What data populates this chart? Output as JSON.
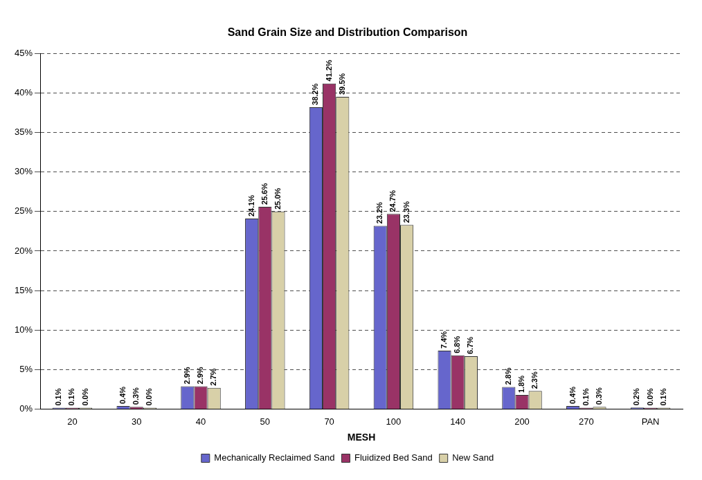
{
  "chart_data": {
    "type": "bar",
    "title": "Sand Grain Size and Distribution Comparison",
    "xlabel": "MESH",
    "categories": [
      "20",
      "30",
      "40",
      "50",
      "70",
      "100",
      "140",
      "200",
      "270",
      "PAN"
    ],
    "series": [
      {
        "name": "Mechanically Reclaimed Sand",
        "color": "#6666cc",
        "values": [
          0.1,
          0.4,
          2.9,
          24.1,
          38.2,
          23.2,
          7.4,
          2.8,
          0.4,
          0.2
        ],
        "value_labels": [
          "0.1%",
          "0.4%",
          "2.9%",
          "24.1%",
          "38.2%",
          "23.2%",
          "7.4%",
          "2.8%",
          "0.4%",
          "0.2%"
        ]
      },
      {
        "name": "Fluidized Bed Sand",
        "color": "#993366",
        "values": [
          0.1,
          0.3,
          2.9,
          25.6,
          41.2,
          24.7,
          6.8,
          1.8,
          0.1,
          0.0
        ],
        "value_labels": [
          "0.1%",
          "0.3%",
          "2.9%",
          "25.6%",
          "41.2%",
          "24.7%",
          "6.8%",
          "1.8%",
          "0.1%",
          "0.0%"
        ]
      },
      {
        "name": "New Sand",
        "color": "#d8d0a8",
        "values": [
          0.0,
          0.0,
          2.7,
          25.0,
          39.5,
          23.3,
          6.7,
          2.3,
          0.3,
          0.1
        ],
        "value_labels": [
          "0.0%",
          "0.0%",
          "2.7%",
          "25.0%",
          "39.5%",
          "23.3%",
          "6.7%",
          "2.3%",
          "0.3%",
          "0.1%"
        ]
      }
    ],
    "ylim": [
      0,
      45
    ],
    "yticks": [
      {
        "value": 0,
        "label": "0%"
      },
      {
        "value": 5,
        "label": "5%"
      },
      {
        "value": 10,
        "label": "10%"
      },
      {
        "value": 15,
        "label": "15%"
      },
      {
        "value": 20,
        "label": "20%"
      },
      {
        "value": 25,
        "label": "25%"
      },
      {
        "value": 30,
        "label": "30%"
      },
      {
        "value": 35,
        "label": "35%"
      },
      {
        "value": 40,
        "label": "40%"
      },
      {
        "value": 45,
        "label": "45%"
      }
    ],
    "grid": "y",
    "line_style": "dashed",
    "legend": "bottom"
  }
}
